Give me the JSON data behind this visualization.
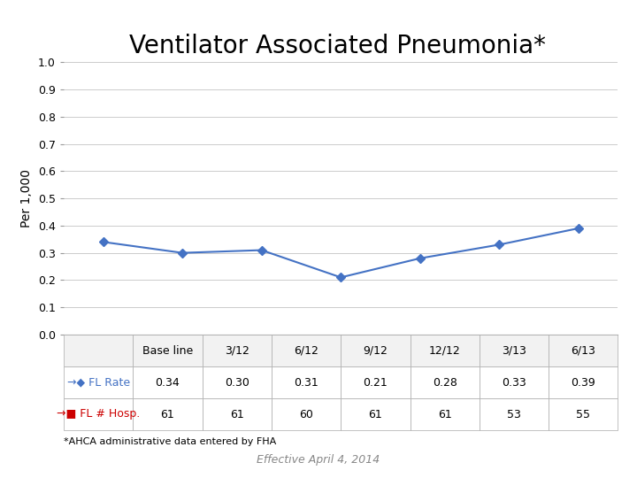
{
  "title": "Ventilator Associated Pneumonia*",
  "ylabel": "Per 1,000",
  "categories": [
    "Base line",
    "3/12",
    "6/12",
    "9/12",
    "12/12",
    "3/13",
    "6/13"
  ],
  "fl_rate": [
    0.34,
    0.3,
    0.31,
    0.21,
    0.28,
    0.33,
    0.39
  ],
  "fl_rate_str": [
    "0.34",
    "0.30",
    "0.31",
    "0.21",
    "0.28",
    "0.33",
    "0.39"
  ],
  "fl_hosp": [
    61,
    61,
    60,
    61,
    61,
    53,
    55
  ],
  "fl_hosp_str": [
    "61",
    "61",
    "60",
    "61",
    "61",
    "53",
    "55"
  ],
  "fl_rate_label": "FL Rate",
  "fl_hosp_label": "FL # Hosp.",
  "line_color": "#4472C4",
  "hosp_color": "#CC0000",
  "ylim": [
    0.0,
    1.0
  ],
  "yticks": [
    0.0,
    0.1,
    0.2,
    0.3,
    0.4,
    0.5,
    0.6,
    0.7,
    0.8,
    0.9,
    1.0
  ],
  "footnote": "*AHCA administrative data entered by FHA",
  "effective_date": "Effective April 4, 2014",
  "background_color": "#ffffff",
  "grid_color": "#cccccc",
  "title_fontsize": 20,
  "axis_label_fontsize": 10,
  "tick_fontsize": 9,
  "table_fontsize": 9,
  "footnote_fontsize": 8,
  "effective_fontsize": 9
}
